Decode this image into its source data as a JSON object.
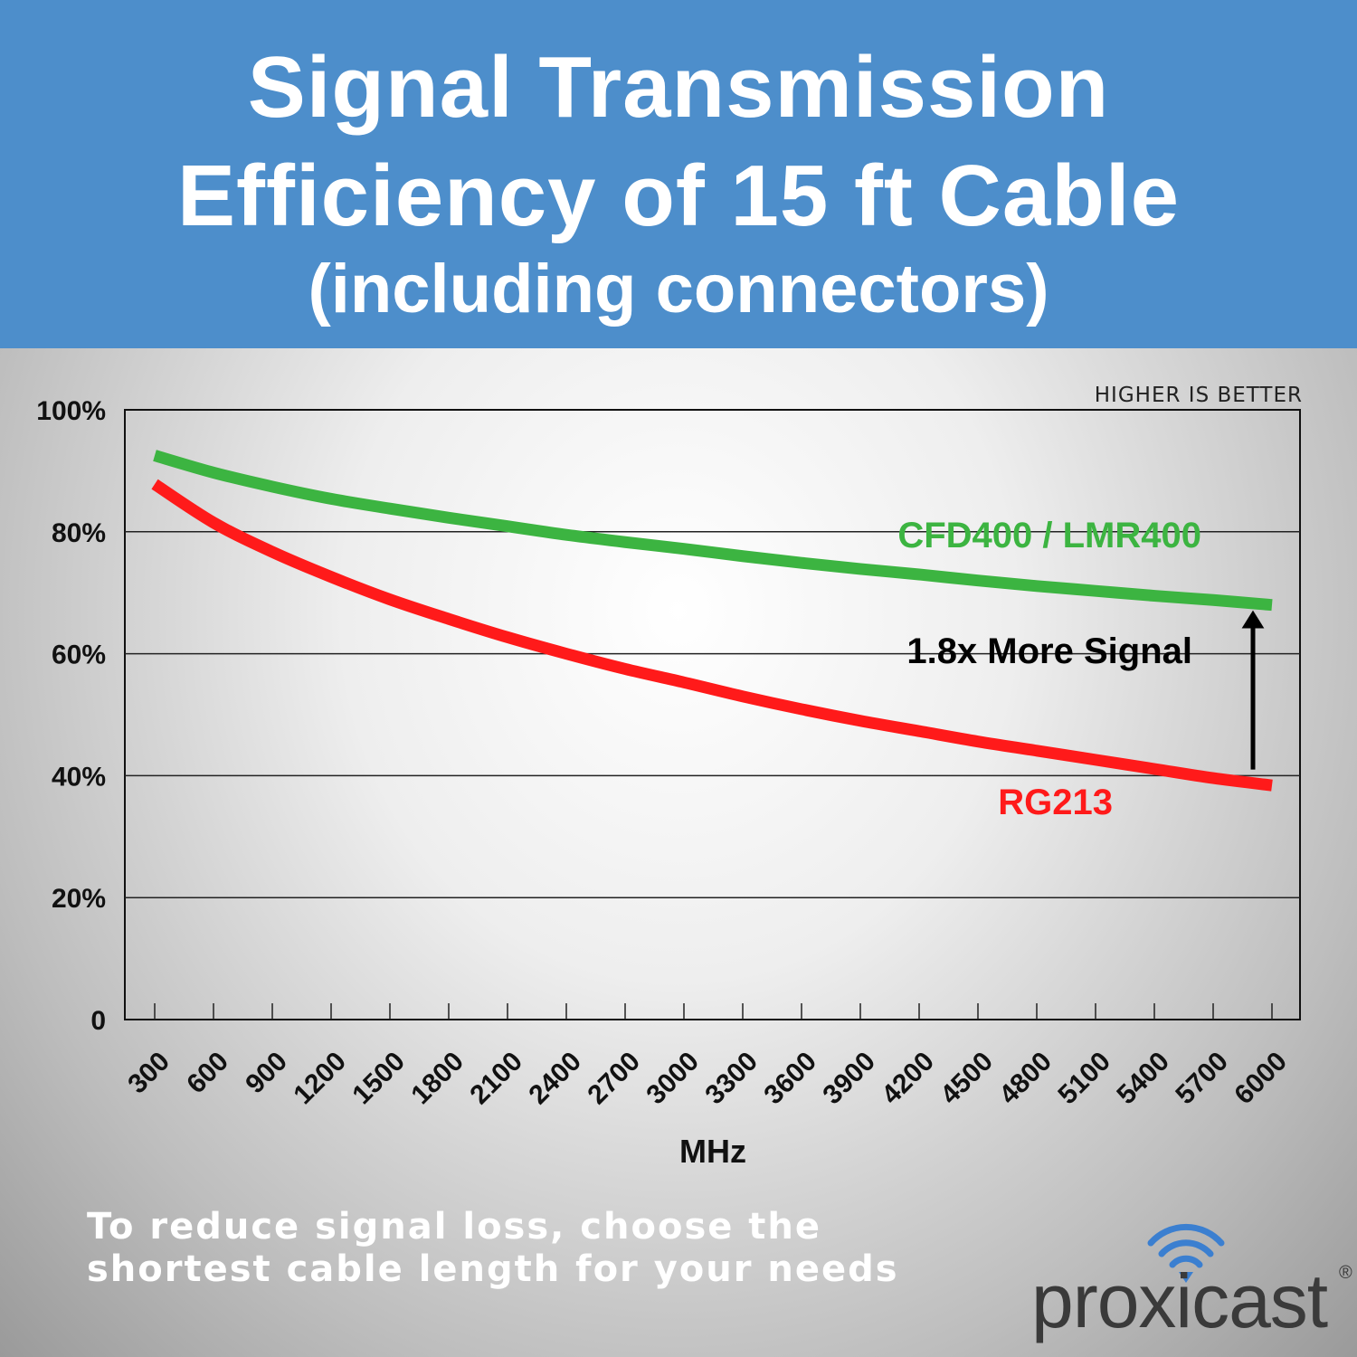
{
  "header": {
    "title_line1": "Signal Transmission",
    "title_line2": "Efficiency of 15 ft Cable",
    "title_line3": "(including connectors)"
  },
  "chart_data": {
    "type": "line",
    "title": "Signal Transmission Efficiency of 15 ft Cable (including connectors)",
    "xlabel": "MHz",
    "ylabel": "",
    "categories": [
      "300",
      "600",
      "900",
      "1200",
      "1500",
      "1800",
      "2100",
      "2400",
      "2700",
      "3000",
      "3300",
      "3600",
      "3900",
      "4200",
      "4500",
      "4800",
      "5100",
      "5400",
      "5700",
      "6000"
    ],
    "ylim": [
      0,
      100
    ],
    "yticks": [
      0,
      20,
      40,
      60,
      80,
      100
    ],
    "ytick_labels": [
      "0",
      "20%",
      "40%",
      "60%",
      "80%",
      "100%"
    ],
    "grid": true,
    "note": "HIGHER IS BETTER",
    "series": [
      {
        "name": "CFD400 / LMR400",
        "color": "#3cb441",
        "values": [
          92.5,
          89.7,
          87.4,
          85.4,
          83.8,
          82.3,
          80.9,
          79.5,
          78.3,
          77.2,
          76.0,
          74.9,
          73.9,
          73.0,
          72.0,
          71.1,
          70.3,
          69.5,
          68.8,
          68.0
        ]
      },
      {
        "name": "RG213",
        "color": "#ff1a1a",
        "values": [
          87.8,
          81.5,
          76.7,
          72.6,
          68.9,
          65.7,
          62.7,
          60.0,
          57.5,
          55.3,
          53.0,
          50.9,
          49.0,
          47.3,
          45.6,
          44.1,
          42.6,
          41.1,
          39.6,
          38.4
        ]
      }
    ],
    "annotation": {
      "text": "1.8x More Signal",
      "arrow_from": 41,
      "arrow_to": 68,
      "at_category": "5850"
    }
  },
  "footer": {
    "note_line1": "To reduce signal loss, choose the",
    "note_line2": "shortest cable length for your needs"
  },
  "logo": {
    "text": "proxicast",
    "registered": "®",
    "color": "#3a3a3a",
    "accent": "#3b7fd0"
  }
}
